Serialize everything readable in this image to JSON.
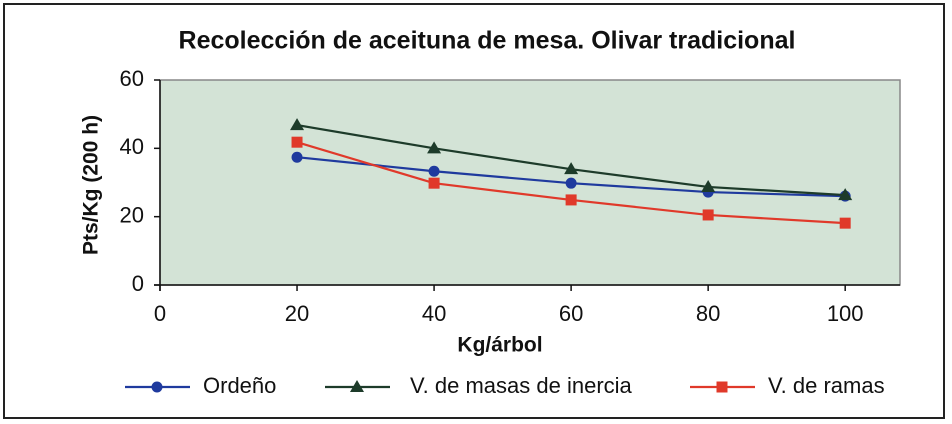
{
  "chart_data": {
    "type": "line",
    "title": "Recolección de aceituna de mesa. Olivar tradicional",
    "x_label": "Kg/árbol",
    "y_label": "Pts/Kg (200 h)",
    "x": [
      20,
      40,
      60,
      80,
      100
    ],
    "series": [
      {
        "name": "Ordeño",
        "color": "#1f3a9e",
        "marker": "circle",
        "values": [
          37.4,
          33.3,
          29.8,
          27.2,
          26
        ]
      },
      {
        "name": "V. de masas de inercia",
        "color": "#1d3b2a",
        "marker": "triangle",
        "values": [
          46.8,
          40,
          33.9,
          28.7,
          26.3
        ]
      },
      {
        "name": "V. de ramas",
        "color": "#e0392a",
        "marker": "square",
        "values": [
          41.8,
          29.8,
          24.9,
          20.5,
          18.1
        ]
      }
    ],
    "xlim": [
      0,
      108
    ],
    "xticks": [
      0,
      20,
      40,
      60,
      80,
      100
    ],
    "ylim": [
      0,
      60
    ],
    "yticks": [
      0,
      20,
      40,
      60
    ],
    "grid": false,
    "legend": "bottom",
    "plot_background": "#d3e3d6"
  }
}
